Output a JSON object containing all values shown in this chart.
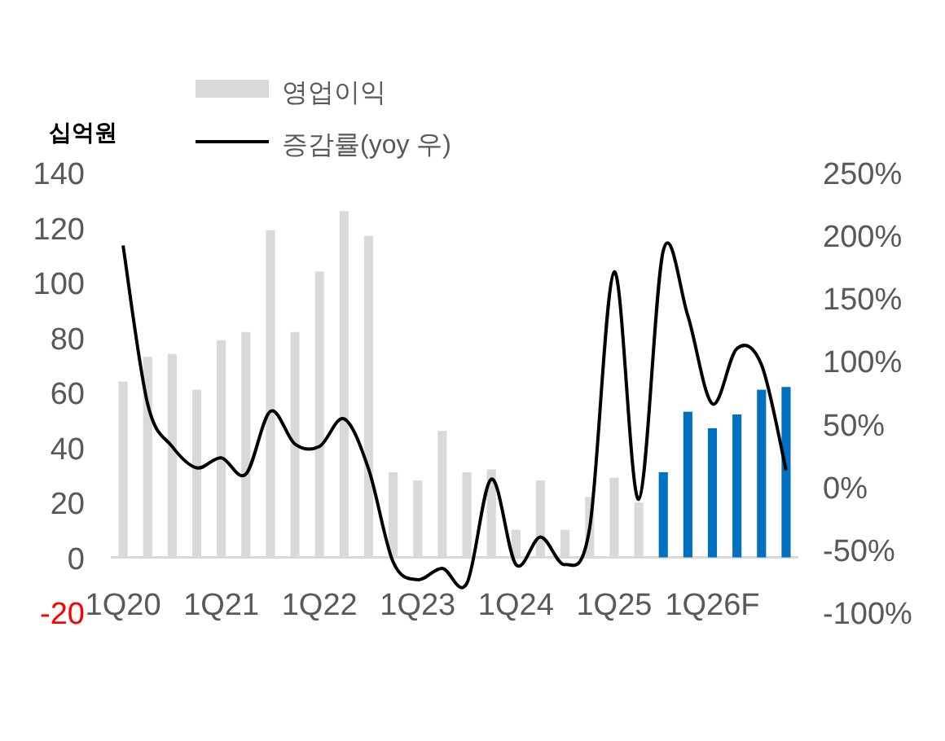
{
  "chart_data": {
    "type": "bar",
    "legend": "top",
    "annotations": [
      "십억원"
    ],
    "categories": [
      "1Q20",
      null,
      null,
      null,
      "1Q21",
      null,
      null,
      null,
      "1Q22",
      null,
      null,
      null,
      "1Q23",
      null,
      null,
      null,
      "1Q24",
      null,
      null,
      null,
      "1Q25",
      null,
      null,
      null,
      "1Q26F",
      null,
      null,
      null
    ],
    "series": [
      {
        "name": "영업이익",
        "axis": "y",
        "colors": [
          "#d9d9d9",
          "#d9d9d9",
          "#d9d9d9",
          "#d9d9d9",
          "#d9d9d9",
          "#d9d9d9",
          "#d9d9d9",
          "#d9d9d9",
          "#d9d9d9",
          "#d9d9d9",
          "#d9d9d9",
          "#d9d9d9",
          "#d9d9d9",
          "#d9d9d9",
          "#d9d9d9",
          "#d9d9d9",
          "#d9d9d9",
          "#d9d9d9",
          "#d9d9d9",
          "#d9d9d9",
          "#d9d9d9",
          "#d9d9d9",
          "#0070c0",
          "#0070c0",
          "#0070c0",
          "#0070c0",
          "#0070c0",
          "#0070c0"
        ],
        "values": [
          64,
          73,
          74,
          61,
          79,
          82,
          119,
          82,
          104,
          126,
          117,
          31,
          28,
          46,
          31,
          32,
          10,
          28,
          10,
          22,
          29,
          20,
          31,
          53,
          47,
          52,
          61,
          62
        ]
      },
      {
        "name": "증감률(yoy 우)",
        "type": "line",
        "axis": "y2",
        "color": "#000000",
        "values": [
          192,
          66,
          32,
          15,
          23,
          10,
          60,
          34,
          32,
          54,
          14,
          -60,
          -74,
          -65,
          -77,
          6,
          -62,
          -40,
          -62,
          -33,
          171,
          -10,
          188,
          136,
          66,
          110,
          97,
          13
        ]
      }
    ],
    "ylim": [
      -20,
      140
    ],
    "yticks": [
      {
        "value": -20,
        "label": "-20"
      },
      0,
      20,
      40,
      60,
      80,
      100,
      120,
      140
    ],
    "y2lim": [
      -100,
      250
    ],
    "y2ticks": [
      {
        "value": -100,
        "label": "-100%"
      },
      {
        "value": -50,
        "label": "-50%"
      },
      {
        "value": 0,
        "label": "0%"
      },
      {
        "value": 50,
        "label": "50%"
      },
      {
        "value": 100,
        "label": "100%"
      },
      {
        "value": 150,
        "label": "150%"
      },
      {
        "value": 200,
        "label": "200%"
      },
      {
        "value": 250,
        "label": "250%"
      }
    ]
  }
}
